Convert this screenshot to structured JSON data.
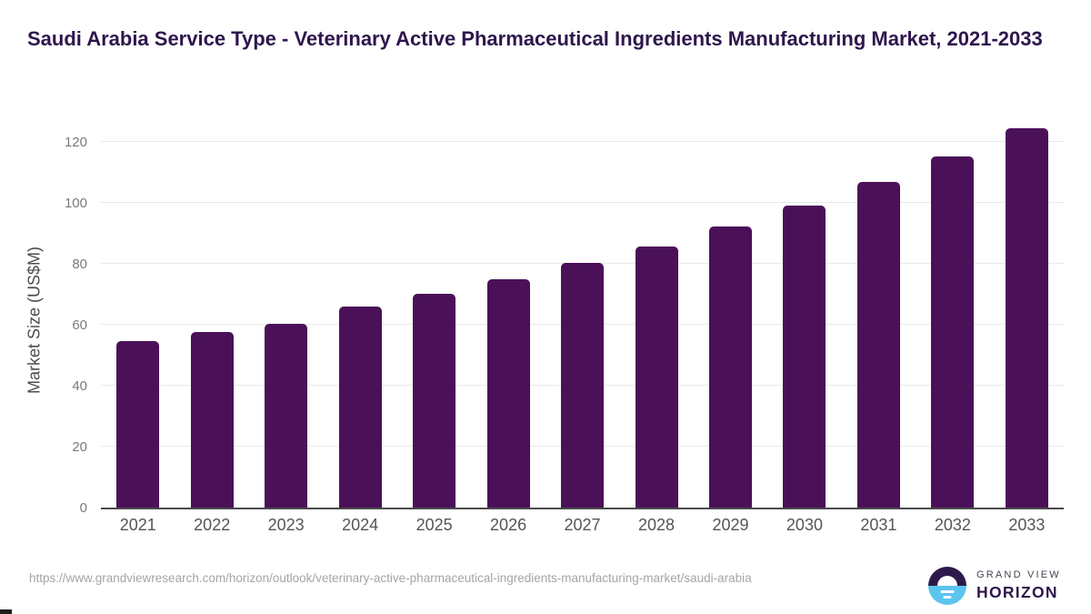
{
  "title": "Saudi Arabia Service Type - Veterinary Active Pharmaceutical Ingredients Manufacturing Market, 2021-2033",
  "chart_data": {
    "type": "bar",
    "title": "Saudi Arabia Service Type - Veterinary Active Pharmaceutical Ingredients Manufacturing Market, 2021-2033",
    "categories": [
      "2021",
      "2022",
      "2023",
      "2024",
      "2025",
      "2026",
      "2027",
      "2028",
      "2029",
      "2030",
      "2031",
      "2032",
      "2033"
    ],
    "values": [
      54.7,
      57.5,
      60.3,
      66.1,
      70.2,
      74.9,
      80.4,
      85.7,
      92.1,
      99.1,
      107.0,
      115.3,
      124.5
    ],
    "xlabel": "",
    "ylabel": "Market Size (US$M)",
    "yticks": [
      0,
      20,
      40,
      60,
      80,
      100,
      120
    ],
    "ylim": [
      0,
      125
    ],
    "grid": "horizontal",
    "legend": "none",
    "bar_color": "#4a1158"
  },
  "footer": {
    "source_url": "https://www.grandviewresearch.com/horizon/outlook/veterinary-active-pharmaceutical-ingredients-manufacturing-market/saudi-arabia",
    "logo": {
      "brand_line": "GRAND VIEW",
      "product_line": "HORIZON"
    }
  },
  "colors": {
    "bar": "#4a1158",
    "title_text": "#2e164d",
    "logo_blue": "#5bc5ee",
    "logo_dark": "#2d1a4a",
    "axis_line": "#4b4b4b",
    "gridline": "#e9e9e9",
    "tick_text": "#7a7a7a",
    "x_label_text": "#555557",
    "url_text": "#a5a5a5"
  }
}
